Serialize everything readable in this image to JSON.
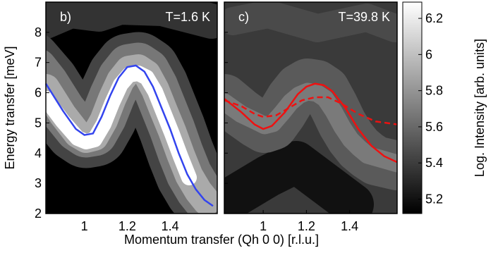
{
  "figure": {
    "xlabel": "Momentum transfer (Qh 0 0) [r.l.u.]",
    "ylabel": "Energy transfer [meV]"
  },
  "colorbar": {
    "label": "Log. Intensity [arb. units]",
    "lim": [
      5.12,
      6.29
    ],
    "ticks": [
      5.2,
      5.4,
      5.6,
      5.8,
      6,
      6.2
    ]
  },
  "chart_data": [
    {
      "type": "line",
      "panel_label": "b)",
      "annotation": "T=1.6 K",
      "xlim": [
        0.82,
        1.62
      ],
      "ylim": [
        2,
        9
      ],
      "xticks": [
        1,
        1.2,
        1.4
      ],
      "yticks": [
        2,
        3,
        4,
        5,
        6,
        7,
        8
      ],
      "ytick_labels": true,
      "series": [
        {
          "color": "#3344ee",
          "dashed": false,
          "x": [
            0.82,
            0.9,
            0.96,
            1.0,
            1.04,
            1.08,
            1.12,
            1.16,
            1.2,
            1.24,
            1.28,
            1.32,
            1.36,
            1.4,
            1.44,
            1.48,
            1.52,
            1.56,
            1.6
          ],
          "values": [
            6.3,
            5.4,
            4.8,
            4.6,
            4.65,
            5.2,
            5.9,
            6.5,
            6.85,
            6.9,
            6.7,
            6.2,
            5.5,
            4.8,
            4.0,
            3.3,
            2.8,
            2.45,
            2.25
          ]
        }
      ]
    },
    {
      "type": "line",
      "panel_label": "c)",
      "annotation": "T=39.8 K",
      "xlim": [
        0.82,
        1.62
      ],
      "ylim": [
        2,
        9
      ],
      "xticks": [
        1,
        1.2,
        1.4
      ],
      "yticks": [
        2,
        3,
        4,
        5,
        6,
        7,
        8
      ],
      "ytick_labels": false,
      "series": [
        {
          "color": "#ee1111",
          "dashed": false,
          "x": [
            0.82,
            0.9,
            0.96,
            1.0,
            1.04,
            1.1,
            1.16,
            1.2,
            1.24,
            1.28,
            1.32,
            1.38,
            1.44,
            1.5,
            1.56,
            1.62
          ],
          "values": [
            5.8,
            5.35,
            4.95,
            4.8,
            4.9,
            5.35,
            5.95,
            6.2,
            6.3,
            6.25,
            6.05,
            5.5,
            4.8,
            4.25,
            3.9,
            3.7
          ]
        },
        {
          "color": "#ee1111",
          "dashed": true,
          "x": [
            0.82,
            0.9,
            0.96,
            1.0,
            1.06,
            1.12,
            1.18,
            1.24,
            1.3,
            1.36,
            1.44,
            1.52,
            1.62
          ],
          "values": [
            5.75,
            5.55,
            5.3,
            5.2,
            5.25,
            5.5,
            5.75,
            5.85,
            5.85,
            5.65,
            5.3,
            5.05,
            4.95
          ]
        }
      ]
    }
  ]
}
